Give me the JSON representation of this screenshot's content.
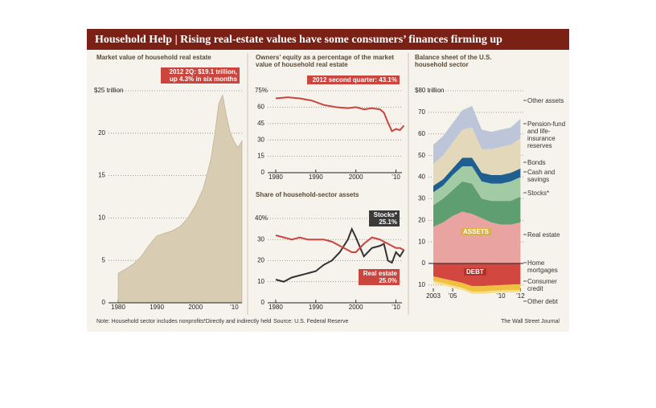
{
  "header": {
    "title": "Household Help | Rising real-estate values have some consumers’ finances firming up"
  },
  "chart_data": [
    {
      "type": "area",
      "title": "Market value of household real estate",
      "color": "#d8ccb2",
      "annotations": [
        "2012 2Q: $19.1 trillion, up 4.3% in six months"
      ],
      "x": [
        1980,
        1982,
        1984,
        1986,
        1988,
        1990,
        1992,
        1994,
        1996,
        1998,
        2000,
        2002,
        2004,
        2005,
        2006,
        2007,
        2008,
        2009,
        2010,
        2011,
        2012
      ],
      "values": [
        3.5,
        4,
        4.6,
        5.5,
        6.8,
        7.9,
        8.2,
        8.5,
        9,
        10,
        11.5,
        13.5,
        17,
        20,
        23.5,
        24.5,
        22,
        20,
        19,
        18.3,
        19.1
      ],
      "xlim": [
        1977.5,
        2012
      ],
      "xticks": [
        1980,
        1990,
        2000,
        {
          "value": 2010,
          "label": "’10"
        }
      ],
      "ylim": [
        0,
        25
      ],
      "yticks": [
        0,
        5,
        10,
        15,
        20,
        {
          "value": 25,
          "label": "$25 trillion"
        }
      ],
      "grid": true
    },
    {
      "type": "line",
      "title": "Owners’ equity as a percentage of the market value of household real estate",
      "annotations": [
        "2012 second quarter: 43.1%"
      ],
      "x": [
        1980,
        1983,
        1986,
        1989,
        1992,
        1995,
        1998,
        2000,
        2002,
        2004,
        2006,
        2007,
        2008,
        2009,
        2010,
        2011,
        2012
      ],
      "series": [
        {
          "name": "Owners’ equity",
          "color": "#c9453e",
          "values": [
            68,
            69,
            68,
            66,
            62,
            60,
            59,
            60,
            58,
            59,
            58,
            55,
            46,
            38,
            40,
            39,
            43.1
          ]
        }
      ],
      "xlim": [
        1978,
        2011.5
      ],
      "xticks": [
        1980,
        1990,
        2000,
        {
          "value": 2010,
          "label": "’10"
        }
      ],
      "ylim": [
        0,
        75
      ],
      "yticks": [
        0,
        15,
        30,
        45,
        60,
        {
          "value": 75,
          "label": "75%"
        }
      ],
      "grid": true
    },
    {
      "type": "line",
      "title": "Share of household-sector assets",
      "annotations": [
        "25.1%",
        "25.0%"
      ],
      "x": [
        1980,
        1982,
        1984,
        1986,
        1988,
        1990,
        1992,
        1994,
        1996,
        1998,
        1999,
        2000,
        2002,
        2004,
        2006,
        2007,
        2008,
        2009,
        2010,
        2011,
        2012
      ],
      "series": [
        {
          "name": "Stocks*",
          "color": "#333333",
          "values": [
            11,
            10,
            12,
            13,
            14,
            15,
            18,
            20,
            24,
            30,
            35,
            31,
            22,
            26,
            27,
            28,
            20,
            19,
            24,
            22,
            25.1
          ]
        },
        {
          "name": "Real estate",
          "color": "#c9453e",
          "values": [
            32,
            31,
            30,
            31,
            30,
            30,
            30,
            29,
            27,
            25,
            24,
            24,
            28,
            31,
            30,
            29,
            28,
            27,
            26,
            26,
            25.0
          ]
        }
      ],
      "xlim": [
        1978,
        2011.5
      ],
      "xticks": [
        1980,
        1990,
        2000,
        {
          "value": 2010,
          "label": "’10"
        }
      ],
      "ylim": [
        0,
        40
      ],
      "yticks": [
        0,
        10,
        20,
        30,
        {
          "value": 40,
          "label": "40%"
        }
      ],
      "grid": true
    },
    {
      "type": "stacked_area",
      "title": "Balance sheet of the U.S. household sector",
      "labels": [
        "ASSETS",
        "DEBT"
      ],
      "x": [
        2003,
        2004,
        2005,
        2006,
        2007,
        2008,
        2009,
        2010,
        2011,
        2012
      ],
      "series": [
        {
          "name": "Real estate",
          "color": "#e9a3a0",
          "values": [
            17,
            19,
            22,
            24,
            23,
            21,
            19,
            18,
            18,
            19
          ]
        },
        {
          "name": "Stocks*",
          "color": "#5f9e70",
          "values": [
            10,
            11,
            12,
            14,
            14,
            9,
            10,
            11,
            11,
            12
          ]
        },
        {
          "name": "Cash and savings",
          "color": "#a3cba3",
          "values": [
            6,
            6,
            7,
            7,
            8,
            8,
            8,
            8,
            9,
            9
          ]
        },
        {
          "name": "Bonds",
          "color": "#1f5f8f",
          "values": [
            3,
            3,
            3,
            4,
            4,
            4,
            4,
            4,
            4,
            4
          ]
        },
        {
          "name": "Pension-fund and life-insurance reserves",
          "color": "#e4d8ba",
          "values": [
            10,
            11,
            12,
            13,
            14,
            11,
            12,
            13,
            13,
            14
          ]
        },
        {
          "name": "Other assets",
          "color": "#bcc6d8",
          "values": [
            9,
            9,
            9,
            9,
            10,
            9,
            8,
            8,
            8,
            9
          ]
        },
        {
          "name": "Home mortgages",
          "color": "#d2473f",
          "values": [
            -6,
            -7,
            -8,
            -9,
            -10.5,
            -10.5,
            -10.2,
            -10,
            -9.8,
            -9.6
          ]
        },
        {
          "name": "Consumer credit",
          "color": "#f0c040",
          "values": [
            -2,
            -2.1,
            -2.2,
            -2.3,
            -2.5,
            -2.6,
            -2.5,
            -2.4,
            -2.6,
            -2.7
          ]
        },
        {
          "name": "Other debt",
          "color": "#f6df8a",
          "values": [
            -1,
            -1,
            -1,
            -1,
            -1,
            -1,
            -1,
            -1,
            -1,
            -1
          ]
        }
      ],
      "xlim": [
        2002.5,
        2012.3
      ],
      "xticks": [
        2003,
        {
          "value": 2005,
          "label": "’05"
        },
        {
          "value": 2010,
          "label": "’10"
        },
        {
          "value": 2012,
          "label": "’12"
        }
      ],
      "ylim": [
        -13,
        80
      ],
      "yticks": [
        {
          "value": -10,
          "label": "10"
        },
        0,
        10,
        20,
        30,
        40,
        50,
        60,
        70,
        {
          "value": 80,
          "label": "$80 trillion"
        }
      ],
      "grid": true
    }
  ],
  "footer": {
    "note": "Note: Household sector includes nonprofits.",
    "footnote": "*Directly and indirectly held",
    "source": "Source: U.S. Federal Reserve",
    "credit": "The Wall Street Journal"
  }
}
